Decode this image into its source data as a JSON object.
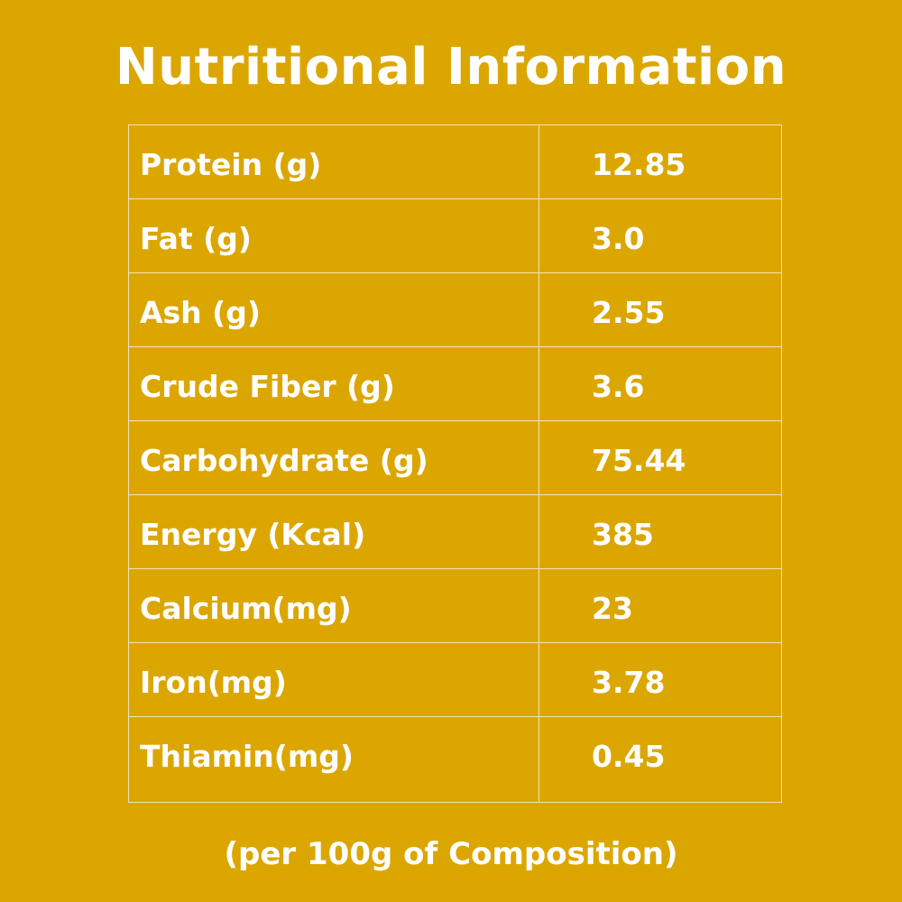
{
  "title": "Nutritional Information",
  "rows": [
    {
      "label": "Protein (g)",
      "value": "12.85"
    },
    {
      "label": "Fat (g)",
      "value": "3.0"
    },
    {
      "label": "Ash (g)",
      "value": "2.55"
    },
    {
      "label": "Crude Fiber (g)",
      "value": "3.6"
    },
    {
      "label": "Carbohydrate (g)",
      "value": "75.44"
    },
    {
      "label": "Energy (Kcal)",
      "value": "385"
    },
    {
      "label": "Calcium(mg)",
      "value": "23"
    },
    {
      "label": "Iron(mg)",
      "value": "3.78"
    },
    {
      "label": "Thiamin(mg)",
      "value": "0.45"
    }
  ],
  "footnote": "(per 100g of Composition)",
  "colors": {
    "background": "#DCA600",
    "text": "#FFFFFF",
    "grid": "#F2E3B6"
  }
}
